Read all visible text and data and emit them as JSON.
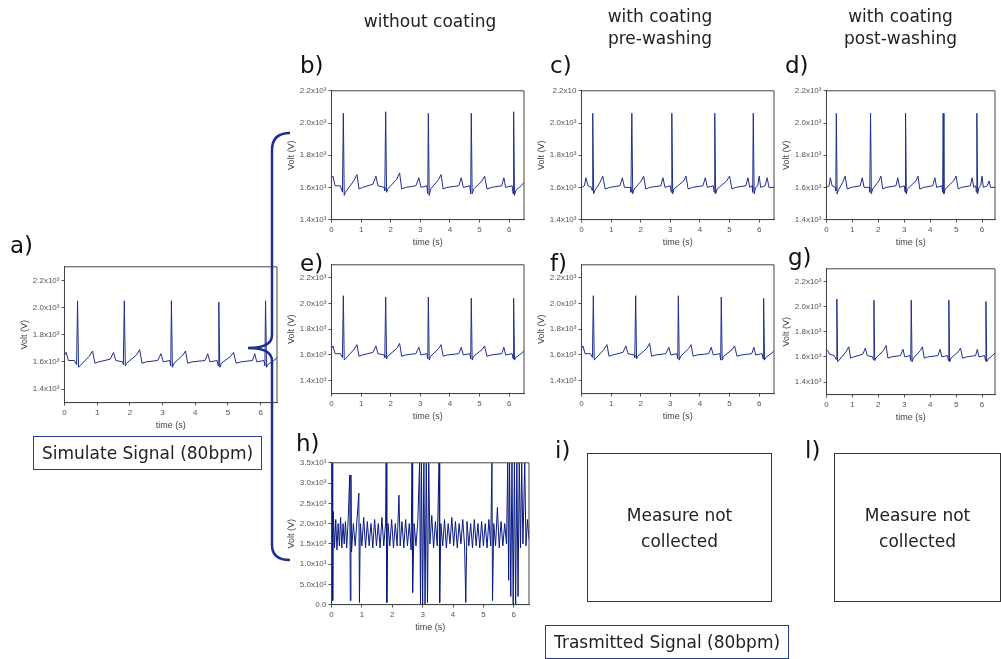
{
  "chart_data": [
    {
      "type": "line",
      "title": "a)",
      "xlabel": "time (s)",
      "ylabel": "Volt (V)",
      "annotations": [
        "Simulate Signal (80bpm)"
      ],
      "xlim": [
        0,
        6.5
      ],
      "xticks": [
        0,
        1,
        2,
        3,
        4,
        5,
        6
      ],
      "ylim": [
        1300,
        2300
      ],
      "yticks": [
        {
          "value": 1400,
          "label": "1.4x10³"
        },
        {
          "value": 1600,
          "label": "1.6x10³"
        },
        {
          "value": 1800,
          "label": "1.8x10³"
        },
        {
          "value": 2000,
          "label": "2.0x10³"
        },
        {
          "value": 2200,
          "label": "2.2x10³"
        }
      ],
      "x": [
        0,
        0.05,
        0.12,
        0.3,
        0.37,
        0.4,
        0.43,
        0.47,
        0.75,
        0.86,
        0.93,
        1.05,
        1.4,
        1.5,
        1.57,
        1.78,
        1.8,
        1.83,
        1.86,
        1.9,
        2.2,
        2.3,
        2.37,
        2.5,
        2.85,
        2.95,
        3.02,
        3.22,
        3.25,
        3.27,
        3.3,
        3.35,
        3.62,
        3.7,
        3.77,
        3.9,
        4.3,
        4.38,
        4.45,
        4.67,
        4.7,
        4.72,
        4.75,
        4.8,
        5.08,
        5.17,
        5.25,
        5.4,
        5.75,
        5.82,
        5.88,
        6.1,
        6.13,
        6.15,
        6.18,
        6.22,
        6.4,
        6.5
      ],
      "series": [
        {
          "color": "#1f2f8f",
          "values": [
            1650,
            1670,
            1610,
            1610,
            1580,
            2050,
            1560,
            1570,
            1640,
            1680,
            1590,
            1600,
            1620,
            1670,
            1610,
            1600,
            1580,
            2050,
            1570,
            1590,
            1650,
            1690,
            1590,
            1600,
            1610,
            1660,
            1600,
            1610,
            1570,
            2050,
            1560,
            1590,
            1650,
            1680,
            1590,
            1600,
            1610,
            1660,
            1600,
            1610,
            1570,
            2040,
            1560,
            1590,
            1640,
            1670,
            1590,
            1600,
            1610,
            1660,
            1600,
            1610,
            1570,
            2050,
            1560,
            1580,
            1610,
            1630
          ]
        }
      ]
    },
    {
      "type": "line",
      "title": "b)",
      "subtitle": "without coating",
      "xlabel": "time (s)",
      "ylabel": "Volt (V)",
      "xlim": [
        0,
        6.5
      ],
      "xticks": [
        0,
        1,
        2,
        3,
        4,
        5,
        6
      ],
      "ylim": [
        1400,
        2200
      ],
      "yticks": [
        {
          "value": 1400,
          "label": "1.4x10³"
        },
        {
          "value": 1600,
          "label": "1.6x10³"
        },
        {
          "value": 1800,
          "label": "1.8x10³"
        },
        {
          "value": 2000,
          "label": "2.0x10³"
        },
        {
          "value": 2200,
          "label": "2.2x10³"
        }
      ],
      "x": [
        0,
        0.05,
        0.12,
        0.3,
        0.37,
        0.4,
        0.43,
        0.47,
        0.75,
        0.86,
        0.93,
        1.05,
        1.4,
        1.5,
        1.57,
        1.78,
        1.8,
        1.83,
        1.86,
        1.9,
        2.2,
        2.3,
        2.37,
        2.5,
        2.85,
        2.95,
        3.02,
        3.22,
        3.25,
        3.27,
        3.3,
        3.35,
        3.62,
        3.7,
        3.77,
        3.9,
        4.3,
        4.38,
        4.45,
        4.67,
        4.7,
        4.72,
        4.75,
        4.8,
        5.08,
        5.17,
        5.25,
        5.4,
        5.75,
        5.82,
        5.88,
        6.1,
        6.13,
        6.15,
        6.18,
        6.22,
        6.4,
        6.5
      ],
      "series": [
        {
          "color": "#1f2f8f",
          "values": [
            1660,
            1670,
            1610,
            1610,
            1570,
            2060,
            1550,
            1570,
            1640,
            1680,
            1590,
            1600,
            1620,
            1670,
            1610,
            1600,
            1580,
            2070,
            1570,
            1590,
            1650,
            1690,
            1590,
            1600,
            1610,
            1660,
            1600,
            1610,
            1560,
            2060,
            1550,
            1590,
            1650,
            1680,
            1590,
            1600,
            1610,
            1660,
            1600,
            1610,
            1560,
            2060,
            1560,
            1590,
            1640,
            1670,
            1590,
            1600,
            1610,
            1660,
            1600,
            1610,
            1560,
            2070,
            1550,
            1580,
            1610,
            1630
          ]
        }
      ]
    },
    {
      "type": "line",
      "title": "c)",
      "subtitle": "with coating\npre-washing",
      "xlabel": "time (s)",
      "ylabel": "Volt (V)",
      "xlim": [
        0,
        6.5
      ],
      "xticks": [
        0,
        1,
        2,
        3,
        4,
        5,
        6
      ],
      "ylim": [
        1400,
        2200
      ],
      "yticks": [
        {
          "value": 1400,
          "label": "1.4x10³"
        },
        {
          "value": 1600,
          "label": "1.6x10³"
        },
        {
          "value": 1800,
          "label": "1.8x10³"
        },
        {
          "value": 2000,
          "label": "2.0x10³"
        },
        {
          "value": 2200,
          "label": "2.2x10"
        }
      ],
      "x": [
        0,
        0.1,
        0.15,
        0.22,
        0.34,
        0.36,
        0.38,
        0.41,
        0.45,
        0.62,
        0.72,
        0.8,
        0.95,
        1.3,
        1.38,
        1.45,
        1.65,
        1.67,
        1.7,
        1.73,
        1.78,
        2.02,
        2.1,
        2.17,
        2.3,
        2.68,
        2.75,
        2.82,
        3.0,
        3.03,
        3.05,
        3.08,
        3.12,
        3.45,
        3.53,
        3.6,
        3.75,
        4.1,
        4.18,
        4.25,
        4.45,
        4.48,
        4.5,
        4.53,
        4.58,
        4.9,
        5.0,
        5.08,
        5.2,
        5.55,
        5.62,
        5.68,
        5.76,
        5.78,
        5.8,
        5.83,
        5.88,
        5.95,
        6.0,
        6.05,
        6.2,
        6.27,
        6.33,
        6.5
      ],
      "series": [
        {
          "color": "#1f2f8f",
          "values": [
            1600,
            1610,
            1660,
            1610,
            1600,
            1580,
            2060,
            1560,
            1580,
            1630,
            1670,
            1590,
            1600,
            1610,
            1660,
            1600,
            1600,
            1570,
            2060,
            1560,
            1590,
            1640,
            1670,
            1590,
            1600,
            1610,
            1660,
            1600,
            1610,
            1570,
            2060,
            1560,
            1590,
            1640,
            1670,
            1590,
            1600,
            1610,
            1660,
            1600,
            1610,
            1570,
            2060,
            1560,
            1590,
            1640,
            1670,
            1590,
            1600,
            1610,
            1660,
            1600,
            1610,
            1570,
            2060,
            1560,
            1600,
            1610,
            1670,
            1600,
            1610,
            1660,
            1600,
            1600
          ]
        }
      ]
    },
    {
      "type": "line",
      "title": "d)",
      "subtitle": "with coating\npost-washing",
      "xlabel": "time (s)",
      "ylabel": "Volt (V)",
      "xlim": [
        0,
        6.5
      ],
      "xticks": [
        0,
        1,
        2,
        3,
        4,
        5,
        6
      ],
      "ylim": [
        1400,
        2200
      ],
      "yticks": [
        {
          "value": 1400,
          "label": "1.4x10³"
        },
        {
          "value": 1600,
          "label": "1.6x10³"
        },
        {
          "value": 1800,
          "label": "1.8x10³"
        },
        {
          "value": 2000,
          "label": "2.0x10³"
        },
        {
          "value": 2200,
          "label": "2.2x10³"
        }
      ],
      "x": [
        0,
        0.1,
        0.15,
        0.22,
        0.34,
        0.36,
        0.38,
        0.41,
        0.45,
        0.62,
        0.72,
        0.8,
        0.95,
        1.3,
        1.38,
        1.45,
        1.65,
        1.67,
        1.7,
        1.73,
        1.78,
        2.02,
        2.1,
        2.17,
        2.3,
        2.68,
        2.75,
        2.82,
        3.0,
        3.03,
        3.05,
        3.08,
        3.12,
        3.45,
        3.53,
        3.6,
        3.75,
        4.1,
        4.18,
        4.25,
        4.45,
        4.48,
        4.5,
        4.53,
        4.58,
        4.9,
        5.0,
        5.08,
        5.2,
        5.55,
        5.62,
        5.68,
        5.76,
        5.78,
        5.8,
        5.83,
        5.88,
        5.95,
        6.0,
        6.05,
        6.2,
        6.27,
        6.33,
        6.5
      ],
      "series": [
        {
          "color": "#1f2f8f",
          "values": [
            1600,
            1610,
            1660,
            1610,
            1600,
            1580,
            2060,
            1560,
            1580,
            1630,
            1670,
            1590,
            1600,
            1610,
            1660,
            1600,
            1600,
            1570,
            2060,
            1560,
            1590,
            1640,
            1670,
            1590,
            1600,
            1610,
            1660,
            1600,
            1610,
            1570,
            2060,
            1560,
            1590,
            1640,
            1670,
            1590,
            1600,
            1610,
            1660,
            1600,
            1610,
            1570,
            2060,
            1560,
            1590,
            1640,
            1670,
            1590,
            1600,
            1610,
            1660,
            1600,
            1610,
            1570,
            2060,
            1560,
            1600,
            1610,
            1670,
            1600,
            1610,
            1640,
            1600,
            1600
          ]
        }
      ]
    },
    {
      "type": "line",
      "title": "e)",
      "xlabel": "time (s)",
      "ylabel": "Volt (V)",
      "xlim": [
        0,
        6.5
      ],
      "xticks": [
        0,
        1,
        2,
        3,
        4,
        5,
        6
      ],
      "ylim": [
        1300,
        2300
      ],
      "yticks": [
        {
          "value": 1400,
          "label": "1.4x10³"
        },
        {
          "value": 1600,
          "label": "1.6x10³"
        },
        {
          "value": 1800,
          "label": "1.8x10³"
        },
        {
          "value": 2000,
          "label": "2.0x10³"
        },
        {
          "value": 2200,
          "label": "2.2x10³"
        }
      ],
      "x": [
        0,
        0.05,
        0.12,
        0.3,
        0.37,
        0.4,
        0.43,
        0.47,
        0.75,
        0.86,
        0.93,
        1.05,
        1.4,
        1.5,
        1.57,
        1.78,
        1.8,
        1.83,
        1.86,
        1.9,
        2.2,
        2.3,
        2.37,
        2.5,
        2.85,
        2.95,
        3.02,
        3.22,
        3.25,
        3.27,
        3.3,
        3.35,
        3.62,
        3.7,
        3.77,
        3.9,
        4.3,
        4.38,
        4.45,
        4.67,
        4.7,
        4.72,
        4.75,
        4.8,
        5.08,
        5.17,
        5.25,
        5.4,
        5.75,
        5.82,
        5.88,
        6.1,
        6.13,
        6.15,
        6.18,
        6.22,
        6.4,
        6.5
      ],
      "series": [
        {
          "color": "#1f2f8f",
          "values": [
            1650,
            1670,
            1610,
            1610,
            1580,
            2060,
            1560,
            1570,
            1640,
            1680,
            1590,
            1600,
            1620,
            1670,
            1610,
            1600,
            1580,
            2050,
            1570,
            1590,
            1650,
            1690,
            1590,
            1600,
            1610,
            1660,
            1600,
            1610,
            1570,
            2050,
            1560,
            1590,
            1650,
            1680,
            1590,
            1600,
            1610,
            1660,
            1600,
            1610,
            1570,
            2040,
            1560,
            1590,
            1640,
            1670,
            1590,
            1600,
            1610,
            1660,
            1600,
            1610,
            1570,
            2040,
            1560,
            1580,
            1610,
            1630
          ]
        }
      ]
    },
    {
      "type": "line",
      "title": "f)",
      "xlabel": "time (s)",
      "ylabel": "Volt (V)",
      "xlim": [
        0,
        6.5
      ],
      "xticks": [
        0,
        1,
        2,
        3,
        4,
        5,
        6
      ],
      "ylim": [
        1300,
        2300
      ],
      "yticks": [
        {
          "value": 1400,
          "label": "1.4x10³"
        },
        {
          "value": 1600,
          "label": "1.6x10³"
        },
        {
          "value": 1800,
          "label": "1.8x10³"
        },
        {
          "value": 2000,
          "label": "2.0x10³"
        },
        {
          "value": 2200,
          "label": "2.2x10³"
        }
      ],
      "x": [
        0,
        0.05,
        0.12,
        0.3,
        0.37,
        0.4,
        0.43,
        0.47,
        0.75,
        0.86,
        0.93,
        1.05,
        1.4,
        1.5,
        1.57,
        1.78,
        1.8,
        1.83,
        1.86,
        1.9,
        2.2,
        2.3,
        2.37,
        2.5,
        2.85,
        2.95,
        3.02,
        3.22,
        3.25,
        3.27,
        3.3,
        3.35,
        3.62,
        3.7,
        3.77,
        3.9,
        4.3,
        4.38,
        4.45,
        4.67,
        4.7,
        4.72,
        4.75,
        4.8,
        5.08,
        5.17,
        5.25,
        5.4,
        5.75,
        5.82,
        5.88,
        6.1,
        6.13,
        6.15,
        6.18,
        6.22,
        6.4,
        6.5
      ],
      "series": [
        {
          "color": "#1f2f8f",
          "values": [
            1650,
            1670,
            1610,
            1610,
            1580,
            2060,
            1560,
            1570,
            1640,
            1680,
            1590,
            1600,
            1620,
            1670,
            1610,
            1600,
            1580,
            2060,
            1570,
            1590,
            1650,
            1690,
            1590,
            1600,
            1610,
            1660,
            1600,
            1610,
            1570,
            2060,
            1560,
            1590,
            1650,
            1680,
            1590,
            1600,
            1610,
            1660,
            1600,
            1610,
            1560,
            2050,
            1560,
            1590,
            1640,
            1670,
            1590,
            1600,
            1610,
            1660,
            1600,
            1610,
            1570,
            2040,
            1560,
            1580,
            1610,
            1630
          ]
        }
      ]
    },
    {
      "type": "line",
      "title": "g)",
      "xlabel": "time (s)",
      "ylabel": "Volt (V)",
      "xlim": [
        0,
        6.5
      ],
      "xticks": [
        0,
        1,
        2,
        3,
        4,
        5,
        6
      ],
      "ylim": [
        1300,
        2300
      ],
      "yticks": [
        {
          "value": 1400,
          "label": "1.4x10³"
        },
        {
          "value": 1600,
          "label": "1.6x10³"
        },
        {
          "value": 1800,
          "label": "1.8x10³"
        },
        {
          "value": 2000,
          "label": "2.0x10³"
        },
        {
          "value": 2200,
          "label": "2.2x10³"
        }
      ],
      "x": [
        0,
        0.05,
        0.12,
        0.3,
        0.37,
        0.4,
        0.43,
        0.47,
        0.75,
        0.86,
        0.93,
        1.05,
        1.4,
        1.5,
        1.57,
        1.78,
        1.8,
        1.83,
        1.86,
        1.9,
        2.2,
        2.3,
        2.37,
        2.5,
        2.85,
        2.95,
        3.02,
        3.22,
        3.25,
        3.27,
        3.3,
        3.35,
        3.62,
        3.7,
        3.77,
        3.9,
        4.3,
        4.38,
        4.45,
        4.67,
        4.7,
        4.72,
        4.75,
        4.8,
        5.08,
        5.17,
        5.25,
        5.4,
        5.75,
        5.82,
        5.88,
        6.1,
        6.13,
        6.15,
        6.18,
        6.22,
        6.4,
        6.5
      ],
      "series": [
        {
          "color": "#1f2f8f",
          "values": [
            1660,
            1650,
            1620,
            1610,
            1580,
            2060,
            1560,
            1570,
            1640,
            1680,
            1590,
            1600,
            1620,
            1670,
            1610,
            1600,
            1580,
            2050,
            1570,
            1590,
            1650,
            1690,
            1590,
            1600,
            1610,
            1660,
            1600,
            1610,
            1570,
            2050,
            1560,
            1590,
            1650,
            1680,
            1590,
            1600,
            1610,
            1660,
            1600,
            1610,
            1570,
            2050,
            1560,
            1590,
            1640,
            1670,
            1590,
            1600,
            1610,
            1660,
            1600,
            1610,
            1570,
            2040,
            1560,
            1580,
            1610,
            1630
          ]
        }
      ]
    },
    {
      "type": "line",
      "title": "h)",
      "xlabel": "time (s)",
      "ylabel": "Volt (V)",
      "xlim": [
        0,
        6.5
      ],
      "xticks": [
        0,
        1,
        2,
        3,
        4,
        5,
        6
      ],
      "ylim": [
        0,
        3500
      ],
      "yticks": [
        {
          "value": 0,
          "label": "0.0"
        },
        {
          "value": 500,
          "label": "5.0x10²"
        },
        {
          "value": 1000,
          "label": "1.0x10³"
        },
        {
          "value": 1500,
          "label": "1.5x10³"
        },
        {
          "value": 2000,
          "label": "2.0x10³"
        },
        {
          "value": 2500,
          "label": "2.5x10³"
        },
        {
          "value": 3000,
          "label": "3.0x10³"
        },
        {
          "value": 3500,
          "label": "3.5x10³"
        }
      ],
      "x": [
        0,
        0.02,
        0.04,
        0.06,
        0.1,
        0.14,
        0.18,
        0.22,
        0.26,
        0.3,
        0.34,
        0.38,
        0.42,
        0.46,
        0.5,
        0.55,
        0.6,
        0.62,
        0.64,
        0.66,
        0.72,
        0.78,
        0.84,
        0.9,
        0.92,
        0.95,
        1.0,
        1.06,
        1.12,
        1.18,
        1.24,
        1.3,
        1.36,
        1.42,
        1.48,
        1.54,
        1.6,
        1.66,
        1.72,
        1.78,
        1.8,
        1.82,
        1.86,
        1.92,
        1.98,
        2.04,
        2.1,
        2.16,
        2.22,
        2.26,
        2.32,
        2.38,
        2.44,
        2.5,
        2.56,
        2.62,
        2.65,
        2.67,
        2.72,
        2.78,
        2.84,
        2.9,
        2.93,
        2.96,
        3.0,
        3.04,
        3.08,
        3.12,
        3.16,
        3.2,
        3.24,
        3.3,
        3.36,
        3.42,
        3.48,
        3.54,
        3.56,
        3.6,
        3.66,
        3.72,
        3.78,
        3.84,
        3.9,
        3.96,
        4.02,
        4.08,
        4.14,
        4.2,
        4.26,
        4.32,
        4.38,
        4.42,
        4.46,
        4.52,
        4.58,
        4.64,
        4.7,
        4.76,
        4.82,
        4.88,
        4.94,
        5.0,
        5.06,
        5.12,
        5.18,
        5.24,
        5.28,
        5.3,
        5.34,
        5.4,
        5.46,
        5.52,
        5.58,
        5.64,
        5.7,
        5.76,
        5.8,
        5.83,
        5.86,
        5.9,
        5.94,
        5.98,
        6.02,
        6.06,
        6.1,
        6.14,
        6.18,
        6.22,
        6.26,
        6.3,
        6.36,
        6.4,
        6.45,
        6.5
      ],
      "series": [
        {
          "color": "#0a1a80",
          "values": [
            1300,
            3500,
            100,
            2300,
            1400,
            2100,
            1350,
            2000,
            1450,
            2150,
            1400,
            2000,
            1500,
            2050,
            1400,
            2100,
            3200,
            100,
            3200,
            1300,
            2000,
            1450,
            2100,
            2750,
            50,
            2000,
            1450,
            2150,
            1400,
            2050,
            1450,
            2000,
            1400,
            2100,
            1450,
            2000,
            1400,
            2150,
            1450,
            2000,
            3500,
            50,
            2000,
            1450,
            2100,
            1400,
            2000,
            1450,
            2700,
            1450,
            2050,
            1400,
            2100,
            1450,
            2000,
            1350,
            3500,
            300,
            2000,
            1450,
            2050,
            3500,
            0,
            3500,
            0,
            3500,
            0,
            3500,
            50,
            3500,
            1500,
            2200,
            1400,
            2050,
            1450,
            3500,
            50,
            2000,
            1450,
            2100,
            1400,
            2000,
            1500,
            2150,
            1450,
            2050,
            1400,
            2000,
            1500,
            2100,
            1450,
            50,
            2050,
            1450,
            2000,
            1400,
            2100,
            1450,
            2000,
            1400,
            2050,
            1450,
            2000,
            1400,
            2100,
            1450,
            3500,
            100,
            2000,
            1450,
            2400,
            1400,
            2050,
            1450,
            2000,
            1500,
            3500,
            600,
            3500,
            200,
            3500,
            0,
            3500,
            0,
            3500,
            200,
            3500,
            1400,
            3500,
            1500,
            3500,
            1450,
            2100,
            1600
          ]
        }
      ]
    },
    {
      "type": "other",
      "title": "i)",
      "annotations": [
        "Measure not collected",
        "Trasmitted Signal (80bpm)"
      ]
    },
    {
      "type": "other",
      "title": "l)",
      "annotations": [
        "Measure not collected"
      ]
    }
  ]
}
